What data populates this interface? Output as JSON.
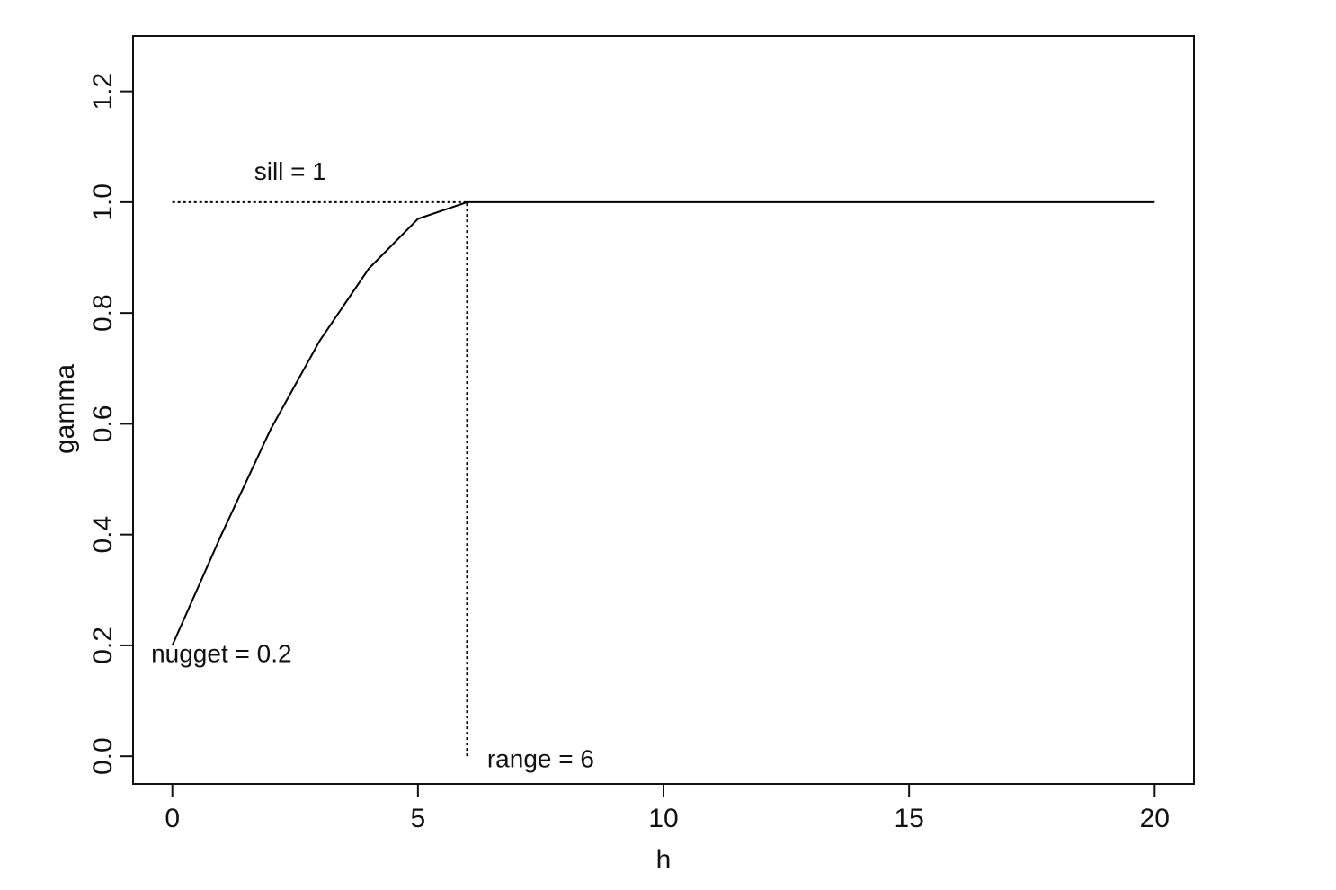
{
  "chart_data": {
    "type": "line",
    "xlabel": "h",
    "ylabel": "gamma",
    "xlim": [
      -0.8,
      20.8
    ],
    "ylim": [
      -0.05,
      1.3
    ],
    "xticks": [
      0,
      5,
      10,
      15,
      20
    ],
    "xtick_labels": [
      "0",
      "5",
      "10",
      "15",
      "20"
    ],
    "yticks": [
      0.0,
      0.2,
      0.4,
      0.6,
      0.8,
      1.0,
      1.2
    ],
    "ytick_labels": [
      "0.0",
      "0.2",
      "0.4",
      "0.6",
      "0.8",
      "1.0",
      "1.2"
    ],
    "grid": false,
    "series": [
      {
        "x": [
          0,
          1,
          2,
          3,
          4,
          5,
          6,
          7,
          8,
          9,
          10,
          11,
          12,
          13,
          14,
          15,
          16,
          17,
          18,
          19,
          20
        ],
        "y": [
          0.2,
          0.4,
          0.59,
          0.75,
          0.88,
          0.97,
          1.0,
          1.0,
          1.0,
          1.0,
          1.0,
          1.0,
          1.0,
          1.0,
          1.0,
          1.0,
          1.0,
          1.0,
          1.0,
          1.0,
          1.0
        ]
      }
    ],
    "reference_lines": [
      {
        "kind": "horizontal",
        "y": 1.0,
        "x_from": 0,
        "x_to": 6,
        "style": "dotted"
      },
      {
        "kind": "vertical",
        "x": 6,
        "y_from": 0.0,
        "y_to": 1.0,
        "style": "dotted"
      }
    ],
    "annotations": [
      {
        "text": "sill = 1",
        "x": 2.4,
        "y": 1.04
      },
      {
        "text": "nugget = 0.2",
        "x": 1.0,
        "y": 0.17
      },
      {
        "text": "range = 6",
        "x": 7.5,
        "y": -0.02
      }
    ],
    "colors": {
      "line": "#000000",
      "axis": "#111111",
      "background": "#ffffff"
    }
  }
}
